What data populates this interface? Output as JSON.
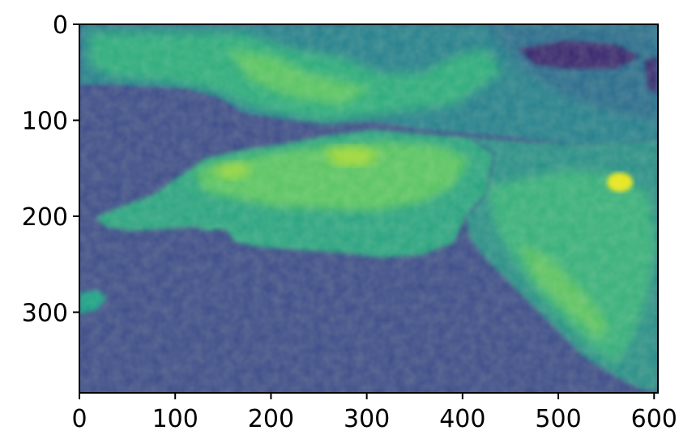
{
  "chart_data": {
    "type": "heatmap",
    "title": "",
    "xlabel": "",
    "ylabel": "",
    "colormap": "viridis",
    "xlim": [
      0,
      604
    ],
    "ylim": [
      384,
      0
    ],
    "x_ticks": [
      0,
      100,
      200,
      300,
      400,
      500,
      600
    ],
    "x_tick_labels": [
      "0",
      "100",
      "200",
      "300",
      "400",
      "500",
      "600"
    ],
    "y_ticks": [
      0,
      100,
      200,
      300
    ],
    "y_tick_labels": [
      "0",
      "100",
      "200",
      "300"
    ],
    "grid": false,
    "colors": {
      "water": "#3d4d8a",
      "land_low": "#26838e",
      "land_mid": "#2eb37c",
      "land_high": "#6ccd5a",
      "peak": "#c8e020",
      "dark": "#3b1a6b"
    }
  }
}
